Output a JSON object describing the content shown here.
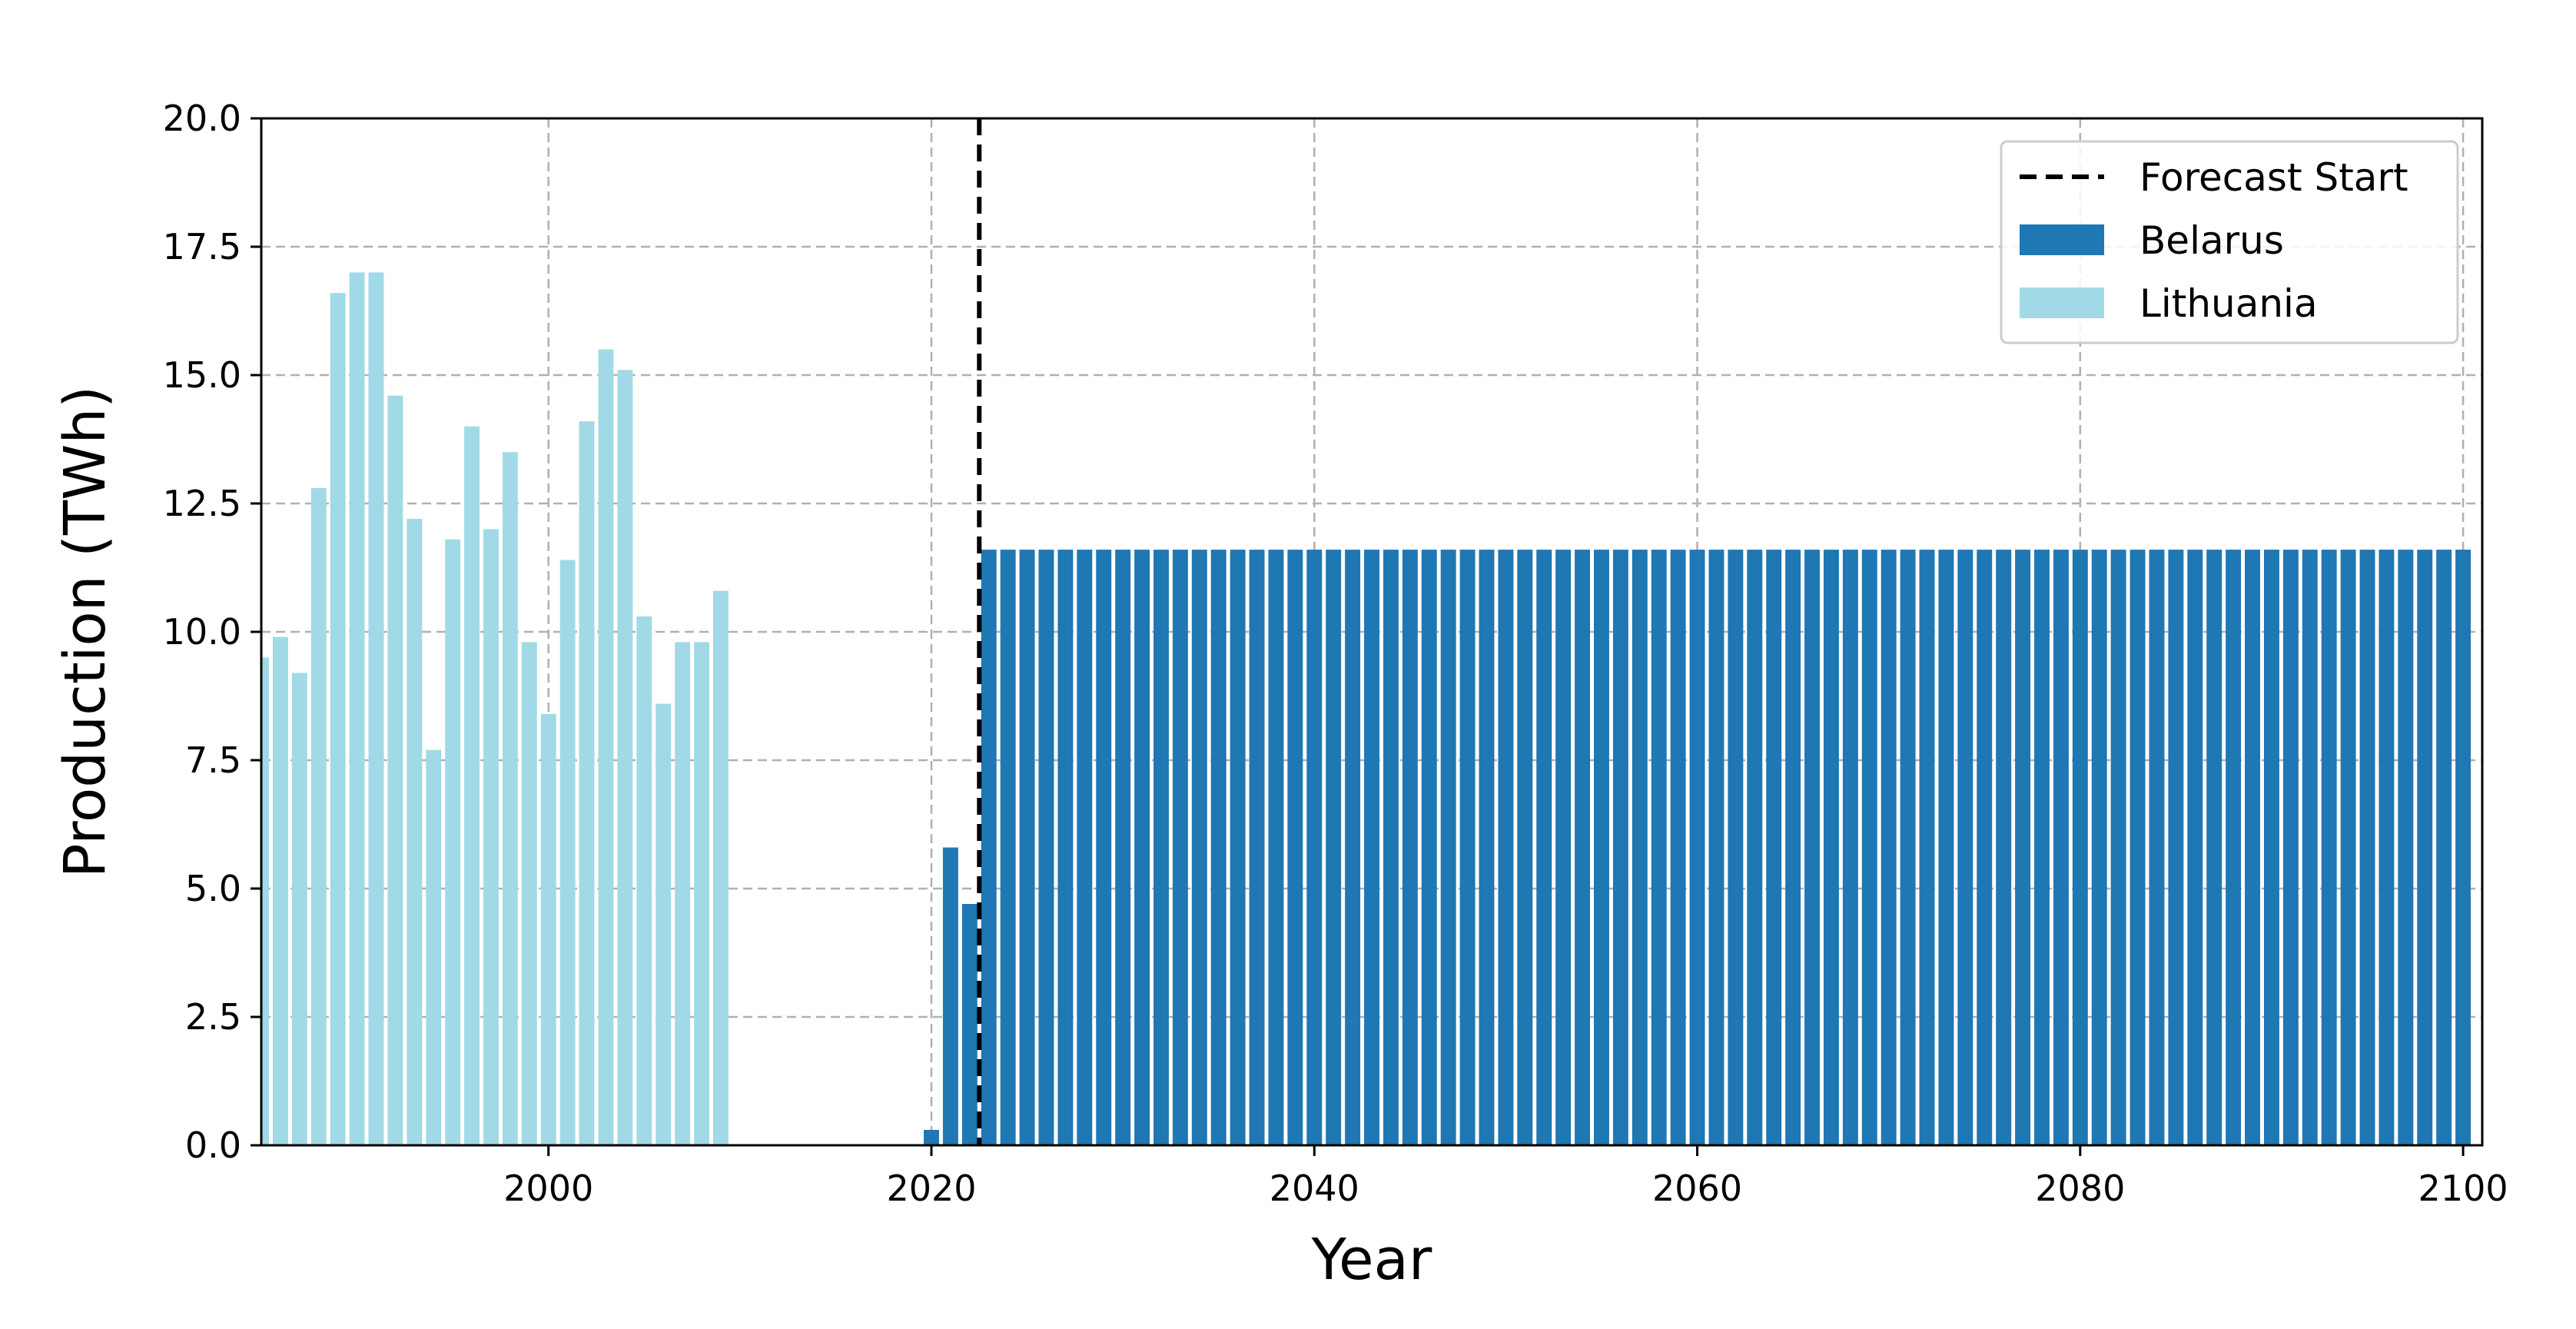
{
  "chart_data": {
    "type": "bar",
    "xlabel": "Year",
    "ylabel": "Production (TWh)",
    "xlim": [
      1985,
      2101
    ],
    "ylim": [
      0,
      20
    ],
    "x_ticks": [
      "2000",
      "2020",
      "2040",
      "2060",
      "2080",
      "2100"
    ],
    "y_ticks": [
      "0.0",
      "2.5",
      "5.0",
      "7.5",
      "10.0",
      "12.5",
      "15.0",
      "17.5",
      "20.0"
    ],
    "grid": true,
    "legend_position": "top-right",
    "forecast_start": {
      "name": "Forecast Start",
      "x": 2022.5
    },
    "series": [
      {
        "name": "Lithuania",
        "color": "#a1dae6",
        "x": [
          1985,
          1986,
          1987,
          1988,
          1989,
          1990,
          1991,
          1992,
          1993,
          1994,
          1995,
          1996,
          1997,
          1998,
          1999,
          2000,
          2001,
          2002,
          2003,
          2004,
          2005,
          2006,
          2007,
          2008,
          2009
        ],
        "values": [
          9.5,
          9.9,
          9.2,
          12.8,
          16.6,
          17.0,
          17.0,
          14.6,
          12.2,
          7.7,
          11.8,
          14.0,
          12.0,
          13.5,
          9.8,
          8.4,
          11.4,
          14.1,
          15.5,
          15.1,
          10.3,
          8.6,
          9.8,
          9.8,
          10.8
        ]
      },
      {
        "name": "Belarus",
        "color": "#1f77b4",
        "x_start": 2020,
        "x_end": 2100,
        "values_explicit": [
          0.3,
          5.8,
          4.7
        ],
        "forecast_value": 11.6
      }
    ]
  }
}
